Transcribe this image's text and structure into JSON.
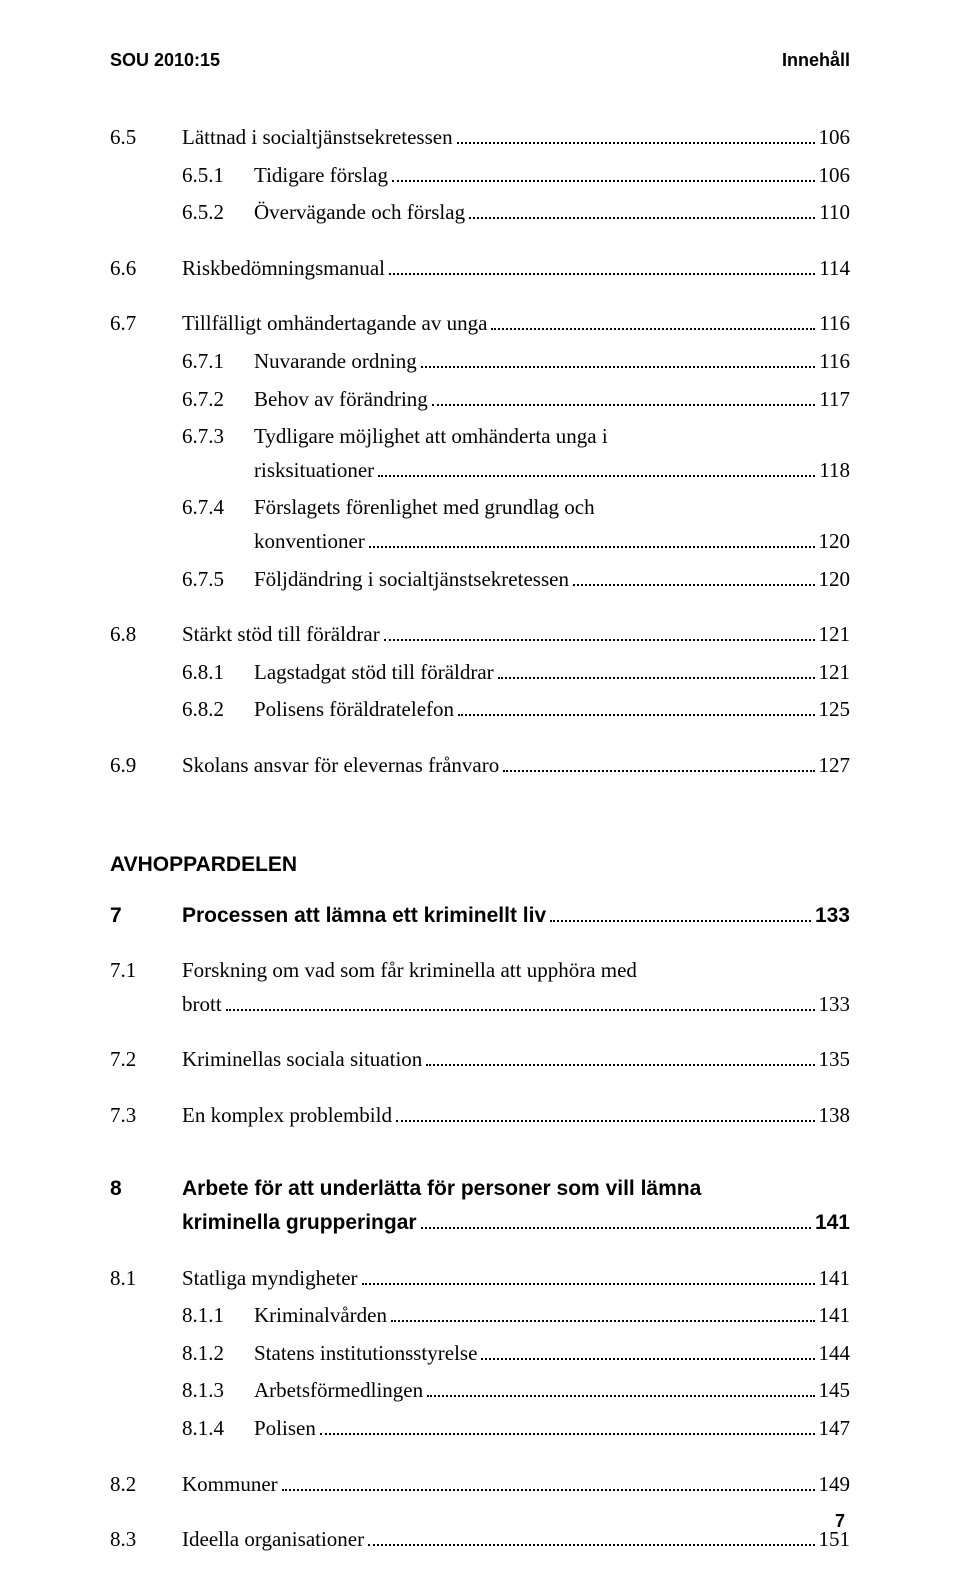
{
  "header": {
    "left": "SOU 2010:15",
    "right": "Innehåll"
  },
  "entries": [
    {
      "level": 1,
      "num": "6.5",
      "text": "Lättnad i socialtjänstsekretessen",
      "page": "106",
      "gapBefore": 0
    },
    {
      "level": 3,
      "num": "6.5.1",
      "text": "Tidigare förslag",
      "page": "106"
    },
    {
      "level": 3,
      "num": "6.5.2",
      "text": "Övervägande och förslag",
      "page": "110"
    },
    {
      "level": 1,
      "num": "6.6",
      "text": "Riskbedömningsmanual",
      "page": "114",
      "gapBefore": 1
    },
    {
      "level": 1,
      "num": "6.7",
      "text": "Tillfälligt omhändertagande av unga",
      "page": "116",
      "gapBefore": 1
    },
    {
      "level": 3,
      "num": "6.7.1",
      "text": "Nuvarande ordning",
      "page": "116"
    },
    {
      "level": 3,
      "num": "6.7.2",
      "text": "Behov av förändring",
      "page": "117"
    },
    {
      "level": 3,
      "num": "6.7.3",
      "text": "Tydligare möjlighet att omhänderta unga i",
      "text2": "risksituationer",
      "page": "118"
    },
    {
      "level": 3,
      "num": "6.7.4",
      "text": "Förslagets förenlighet med grundlag och",
      "text2": "konventioner",
      "page": "120"
    },
    {
      "level": 3,
      "num": "6.7.5",
      "text": "Följdändring i socialtjänstsekretessen",
      "page": "120"
    },
    {
      "level": 1,
      "num": "6.8",
      "text": "Stärkt stöd till föräldrar",
      "page": "121",
      "gapBefore": 1
    },
    {
      "level": 3,
      "num": "6.8.1",
      "text": "Lagstadgat stöd till föräldrar",
      "page": "121"
    },
    {
      "level": 3,
      "num": "6.8.2",
      "text": "Polisens föräldratelefon",
      "page": "125"
    },
    {
      "level": 1,
      "num": "6.9",
      "text": "Skolans ansvar för elevernas frånvaro",
      "page": "127",
      "gapBefore": 1
    }
  ],
  "sectionHeading": "AVHOPPARDELEN",
  "entries2": [
    {
      "level": 1,
      "num": "7",
      "text": "Processen att lämna ett kriminellt liv",
      "page": "133",
      "bold": true
    },
    {
      "level": 1,
      "num": "7.1",
      "text": "Forskning om vad som får kriminella att upphöra med",
      "text2": "brott",
      "page": "133",
      "gapBefore": 1
    },
    {
      "level": 1,
      "num": "7.2",
      "text": "Kriminellas sociala situation",
      "page": "135",
      "gapBefore": 1
    },
    {
      "level": 1,
      "num": "7.3",
      "text": "En komplex problembild",
      "page": "138",
      "gapBefore": 1
    },
    {
      "level": 1,
      "num": "8",
      "text": "Arbete för att underlätta för personer som vill lämna",
      "text2": "kriminella grupperingar",
      "page": "141",
      "bold": true,
      "gapBefore": 2
    },
    {
      "level": 1,
      "num": "8.1",
      "text": "Statliga myndigheter",
      "page": "141",
      "gapBefore": 1
    },
    {
      "level": 3,
      "num": "8.1.1",
      "text": "Kriminalvården",
      "page": "141"
    },
    {
      "level": 3,
      "num": "8.1.2",
      "text": "Statens institutionsstyrelse",
      "page": "144"
    },
    {
      "level": 3,
      "num": "8.1.3",
      "text": "Arbetsförmedlingen",
      "page": "145"
    },
    {
      "level": 3,
      "num": "8.1.4",
      "text": "Polisen",
      "page": "147"
    },
    {
      "level": 1,
      "num": "8.2",
      "text": "Kommuner",
      "page": "149",
      "gapBefore": 1
    },
    {
      "level": 1,
      "num": "8.3",
      "text": "Ideella organisationer",
      "page": "151",
      "gapBefore": 1
    }
  ],
  "pageNumber": "7"
}
